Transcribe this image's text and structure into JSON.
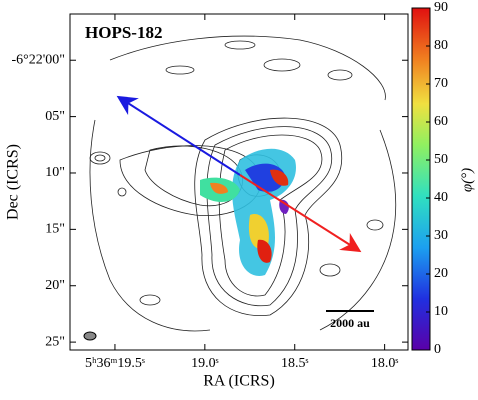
{
  "chart_data": {
    "type": "map",
    "title": "HOPS-182",
    "x_label": "RA (ICRS)",
    "y_label": "Dec (ICRS)",
    "xlim": [
      19.75,
      17.87
    ],
    "xticks": [
      {
        "value": 19.5,
        "label": "5ʰ36ᵐ19.5ˢ"
      },
      {
        "value": 19.0,
        "label": "19.0ˢ"
      },
      {
        "value": 18.5,
        "label": "18.5ˢ"
      },
      {
        "value": 18.0,
        "label": "18.0ˢ"
      }
    ],
    "ylim": [
      25.7,
      -4.1
    ],
    "yticks": [
      {
        "value": 0,
        "label": "-6°22'00\""
      },
      {
        "value": 5,
        "label": "05\""
      },
      {
        "value": 10,
        "label": "10\""
      },
      {
        "value": 15,
        "label": "15\""
      },
      {
        "value": 20,
        "label": "20\""
      },
      {
        "value": 25,
        "label": "25\""
      }
    ],
    "colorbar_label": "φ(°)",
    "clim": [
      0,
      90
    ],
    "cticks": [
      0,
      10,
      20,
      30,
      40,
      50,
      60,
      70,
      80,
      90
    ],
    "scale_bar": "2000 au"
  }
}
